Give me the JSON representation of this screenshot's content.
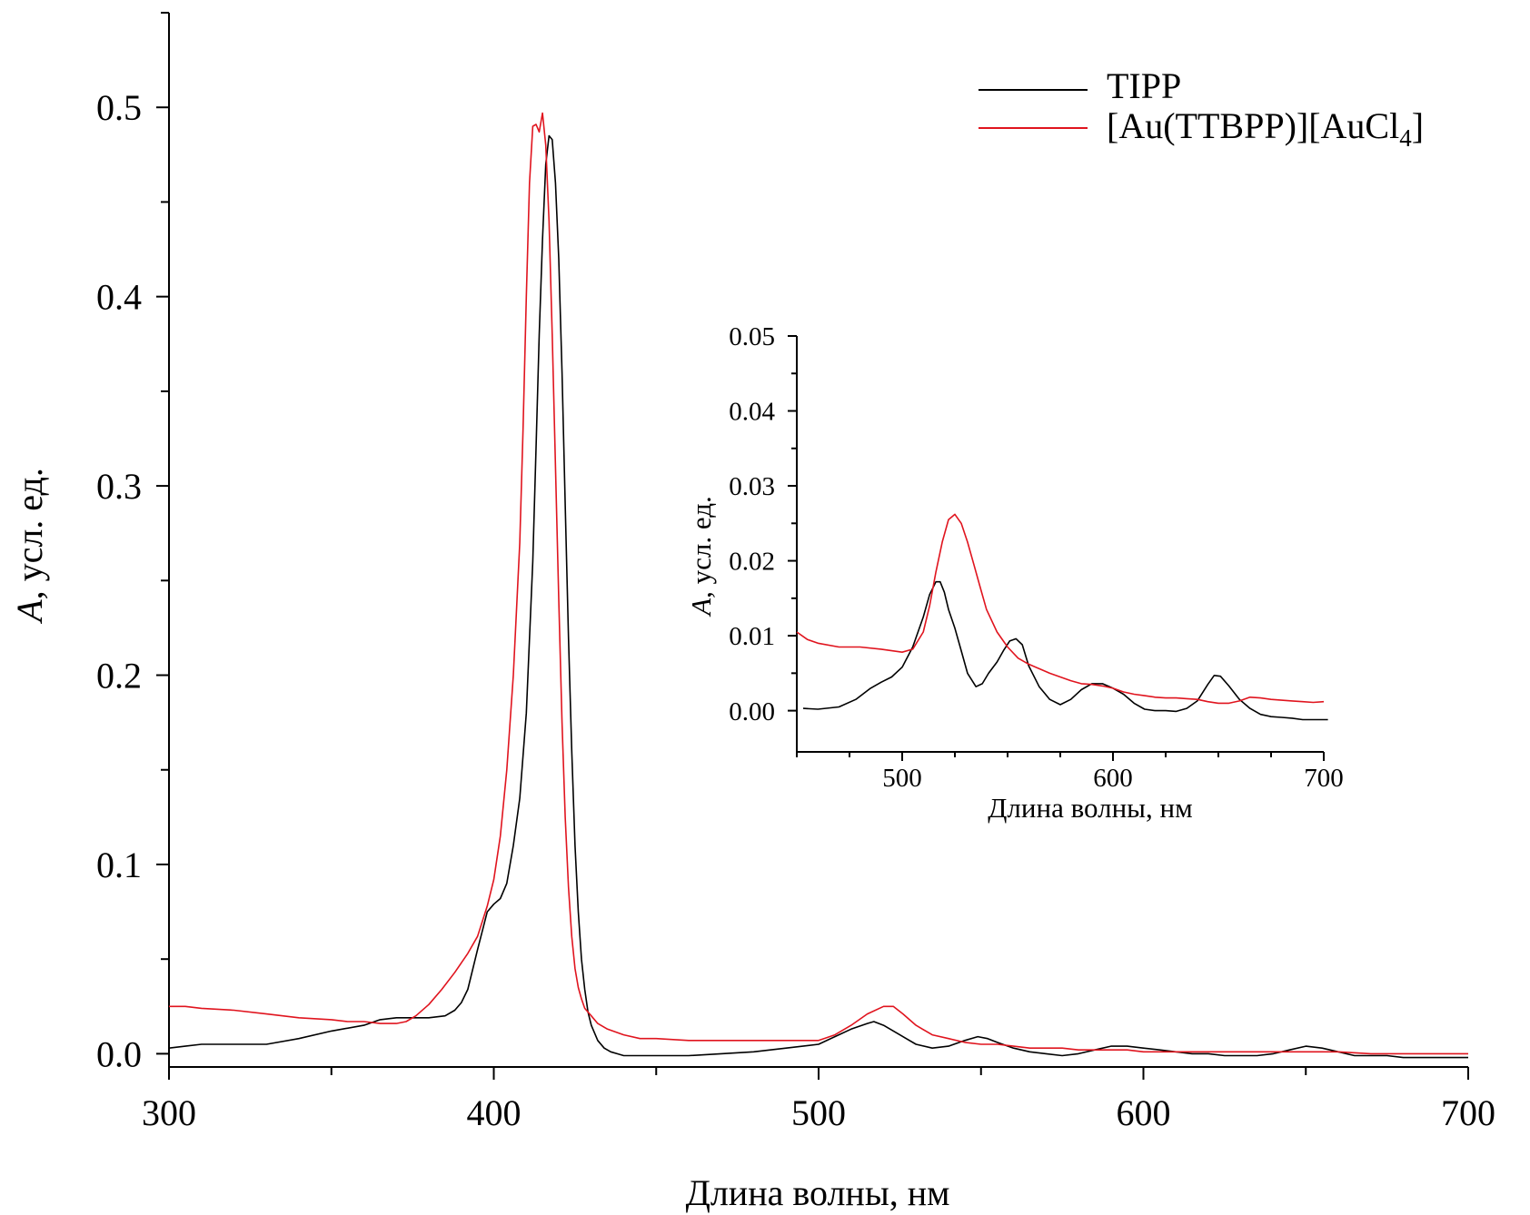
{
  "chart_data": [
    {
      "id": "main",
      "type": "line",
      "xlabel": "Длина волны, нм",
      "ylabel_italic": "A",
      "ylabel_rest": ", усл. ед.",
      "xlim": [
        300,
        700
      ],
      "ylim": [
        -0.007,
        0.55
      ],
      "x_major_ticks": [
        "300",
        "400",
        "500",
        "600",
        "700"
      ],
      "x_minor_ticks": [
        350,
        450,
        550,
        650
      ],
      "y_major_ticks": [
        "0.0",
        "0.1",
        "0.2",
        "0.3",
        "0.4",
        "0.5"
      ],
      "y_minor_ticks": [
        0.05,
        0.15,
        0.25,
        0.35,
        0.45,
        0.55
      ],
      "legend": {
        "placement": "top-right",
        "entries": [
          {
            "text": "TIPP",
            "color": "#000000"
          },
          {
            "text_main": "[Au(TTBPP)][AuCl",
            "text_sub": "4",
            "text_end": "]",
            "color": "#e0141e"
          }
        ]
      },
      "series": [
        {
          "name": "TIPP",
          "color": "#000000",
          "x": [
            300,
            305,
            310,
            320,
            330,
            340,
            350,
            360,
            365,
            370,
            380,
            385,
            388,
            390,
            392,
            395,
            398,
            400,
            402,
            404,
            406,
            408,
            410,
            412,
            413,
            414,
            415,
            416,
            417,
            418,
            419,
            420,
            421,
            422,
            423,
            424,
            425,
            426,
            427,
            428,
            429,
            430,
            432,
            434,
            436,
            438,
            440,
            445,
            450,
            460,
            470,
            480,
            490,
            500,
            505,
            510,
            515,
            517,
            520,
            525,
            530,
            535,
            540,
            545,
            549,
            552,
            555,
            560,
            565,
            570,
            575,
            580,
            585,
            590,
            595,
            600,
            605,
            610,
            615,
            620,
            625,
            630,
            635,
            640,
            645,
            650,
            655,
            660,
            665,
            670,
            675,
            680,
            685,
            690,
            700
          ],
          "y": [
            0.003,
            0.004,
            0.005,
            0.005,
            0.005,
            0.008,
            0.012,
            0.015,
            0.018,
            0.019,
            0.019,
            0.02,
            0.023,
            0.027,
            0.034,
            0.055,
            0.075,
            0.079,
            0.082,
            0.09,
            0.11,
            0.135,
            0.18,
            0.26,
            0.32,
            0.38,
            0.43,
            0.47,
            0.485,
            0.483,
            0.46,
            0.42,
            0.36,
            0.29,
            0.22,
            0.16,
            0.11,
            0.075,
            0.05,
            0.034,
            0.022,
            0.015,
            0.007,
            0.003,
            0.001,
            0.0,
            -0.001,
            -0.001,
            -0.001,
            -0.001,
            0.0,
            0.001,
            0.003,
            0.005,
            0.009,
            0.013,
            0.016,
            0.017,
            0.015,
            0.01,
            0.005,
            0.003,
            0.004,
            0.007,
            0.009,
            0.008,
            0.006,
            0.003,
            0.001,
            0.0,
            -0.001,
            0.0,
            0.002,
            0.004,
            0.004,
            0.003,
            0.002,
            0.001,
            0.0,
            0.0,
            -0.001,
            -0.001,
            -0.001,
            0.0,
            0.002,
            0.004,
            0.003,
            0.001,
            -0.001,
            -0.001,
            -0.001,
            -0.002,
            -0.002,
            -0.002,
            -0.002
          ]
        },
        {
          "name": "[Au(TTBPP)][AuCl4]",
          "color": "#e0141e",
          "x": [
            300,
            305,
            310,
            320,
            330,
            340,
            350,
            355,
            360,
            365,
            370,
            373,
            376,
            380,
            384,
            388,
            392,
            395,
            398,
            400,
            402,
            404,
            406,
            408,
            409,
            410,
            411,
            412,
            413,
            414,
            415,
            416,
            417,
            418,
            419,
            420,
            421,
            422,
            423,
            424,
            425,
            426,
            427,
            428,
            430,
            432,
            435,
            440,
            445,
            450,
            460,
            470,
            480,
            490,
            500,
            505,
            510,
            515,
            520,
            523,
            526,
            530,
            535,
            540,
            545,
            550,
            555,
            560,
            565,
            570,
            575,
            580,
            585,
            590,
            595,
            600,
            610,
            620,
            630,
            640,
            650,
            660,
            670,
            680,
            690,
            700
          ],
          "y": [
            0.025,
            0.025,
            0.024,
            0.023,
            0.021,
            0.019,
            0.018,
            0.017,
            0.017,
            0.016,
            0.016,
            0.017,
            0.02,
            0.026,
            0.034,
            0.043,
            0.053,
            0.062,
            0.078,
            0.092,
            0.115,
            0.15,
            0.2,
            0.27,
            0.33,
            0.4,
            0.46,
            0.49,
            0.491,
            0.487,
            0.497,
            0.48,
            0.44,
            0.38,
            0.31,
            0.24,
            0.175,
            0.125,
            0.088,
            0.062,
            0.045,
            0.035,
            0.029,
            0.024,
            0.02,
            0.016,
            0.013,
            0.01,
            0.008,
            0.008,
            0.007,
            0.007,
            0.007,
            0.007,
            0.007,
            0.01,
            0.015,
            0.021,
            0.025,
            0.025,
            0.021,
            0.015,
            0.01,
            0.008,
            0.006,
            0.005,
            0.005,
            0.004,
            0.003,
            0.003,
            0.003,
            0.002,
            0.002,
            0.002,
            0.002,
            0.001,
            0.001,
            0.001,
            0.001,
            0.001,
            0.001,
            0.001,
            0.0,
            0.0,
            0.0,
            0.0
          ]
        }
      ]
    },
    {
      "id": "inset",
      "type": "line",
      "xlabel": "Длина волны, нм",
      "ylabel_italic": "A",
      "ylabel_rest": ", усл. ед.",
      "xlim": [
        450,
        700
      ],
      "ylim": [
        -0.0055,
        0.05
      ],
      "x_major_ticks": [
        "500",
        "600",
        "700"
      ],
      "x_minor_ticks": [
        450,
        475,
        525,
        550,
        575,
        625,
        650,
        675
      ],
      "y_major_ticks": [
        "0.00",
        "0.01",
        "0.02",
        "0.03",
        "0.04",
        "0.05"
      ],
      "y_minor_ticks": [
        0.005,
        0.015,
        0.025,
        0.035,
        0.045
      ],
      "series": [
        {
          "name": "TIPP",
          "color": "#000000",
          "x": [
            453,
            460,
            470,
            478,
            485,
            490,
            495,
            500,
            505,
            510,
            513,
            516,
            518,
            520,
            522,
            525,
            528,
            531,
            535,
            538,
            541,
            545,
            548,
            551,
            554,
            557,
            560,
            565,
            570,
            575,
            580,
            585,
            590,
            595,
            600,
            605,
            610,
            615,
            620,
            625,
            630,
            635,
            640,
            645,
            648,
            651,
            655,
            660,
            665,
            670,
            675,
            680,
            685,
            690,
            695,
            702
          ],
          "y": [
            0.0003,
            0.0002,
            0.0005,
            0.0015,
            0.003,
            0.0038,
            0.0045,
            0.0058,
            0.0085,
            0.0125,
            0.0155,
            0.0172,
            0.0172,
            0.0158,
            0.0135,
            0.011,
            0.008,
            0.005,
            0.0032,
            0.0036,
            0.005,
            0.0065,
            0.008,
            0.0093,
            0.0096,
            0.0088,
            0.006,
            0.0032,
            0.0015,
            0.0008,
            0.0015,
            0.0028,
            0.0036,
            0.0036,
            0.003,
            0.0022,
            0.001,
            0.0002,
            0.0,
            0.0,
            -0.0001,
            0.0003,
            0.0013,
            0.0035,
            0.0047,
            0.0046,
            0.0033,
            0.0015,
            0.0003,
            -0.0005,
            -0.0008,
            -0.0009,
            -0.001,
            -0.0012,
            -0.0012,
            -0.0012
          ]
        },
        {
          "name": "[Au(TTBPP)][AuCl4]",
          "color": "#e0141e",
          "x": [
            450,
            455,
            460,
            470,
            480,
            490,
            500,
            505,
            510,
            513,
            516,
            519,
            522,
            525,
            528,
            531,
            534,
            537,
            540,
            545,
            550,
            555,
            560,
            565,
            570,
            575,
            580,
            585,
            590,
            595,
            600,
            605,
            610,
            615,
            620,
            625,
            630,
            635,
            640,
            645,
            650,
            655,
            660,
            665,
            670,
            675,
            680,
            685,
            690,
            695,
            700
          ],
          "y": [
            0.0105,
            0.0095,
            0.009,
            0.0085,
            0.0085,
            0.0082,
            0.0078,
            0.0082,
            0.0105,
            0.014,
            0.0185,
            0.0225,
            0.0255,
            0.0262,
            0.025,
            0.0225,
            0.0195,
            0.0165,
            0.0135,
            0.0105,
            0.0085,
            0.007,
            0.0062,
            0.0056,
            0.005,
            0.0045,
            0.004,
            0.0036,
            0.0035,
            0.0033,
            0.003,
            0.0025,
            0.0022,
            0.002,
            0.0018,
            0.0017,
            0.0017,
            0.0016,
            0.0015,
            0.0012,
            0.001,
            0.001,
            0.0013,
            0.0018,
            0.0017,
            0.0015,
            0.0014,
            0.0013,
            0.0012,
            0.0011,
            0.0012
          ]
        }
      ]
    }
  ]
}
